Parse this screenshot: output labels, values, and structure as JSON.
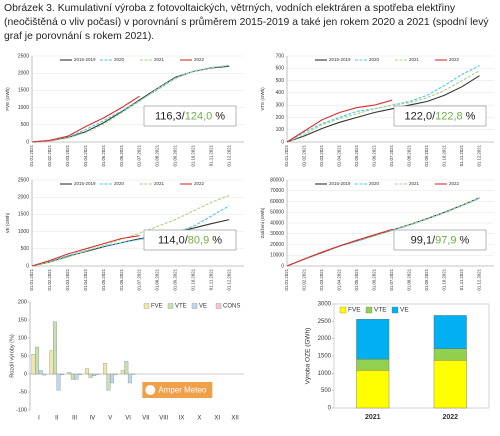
{
  "caption": "Obrázek 3. Kumulativní výroba z fotovoltaických, větrných, vodních elektráren a spotřeba elektřiny (neočištěná o vliv počasí) v porovnání s průměrem 2015-2019 a také jen rokem 2020 a 2021 (spodní levý graf je porovnání s rokem 2021).",
  "chart_data": [
    {
      "type": "line",
      "ylabel": "FVE (GWh)",
      "categories": [
        "01.01.2021",
        "01.02.2021",
        "01.03.2021",
        "01.04.2021",
        "01.05.2021",
        "01.06.2021",
        "01.07.2021",
        "01.08.2021",
        "01.09.2021",
        "01.10.2021",
        "01.11.2021",
        "01.12.2021"
      ],
      "ylim": [
        0,
        2500
      ],
      "yticks": [
        0,
        500,
        1000,
        1500,
        2000,
        2500
      ],
      "grid": true,
      "series": [
        {
          "name": "2015-2019",
          "color": "#333333",
          "dashed": false,
          "values": [
            0,
            40,
            130,
            300,
            560,
            880,
            1220,
            1560,
            1880,
            2050,
            2150,
            2200
          ]
        },
        {
          "name": "2020",
          "color": "#4fc3e8",
          "dashed": true,
          "values": [
            0,
            40,
            140,
            360,
            620,
            900,
            1200,
            1520,
            1850,
            2060,
            2170,
            2220
          ]
        },
        {
          "name": "2021",
          "color": "#a9d18e",
          "dashed": true,
          "values": [
            0,
            30,
            110,
            280,
            520,
            850,
            1180,
            1550,
            1860,
            2050,
            2160,
            2230
          ]
        },
        {
          "name": "2022",
          "color": "#d9302c",
          "dashed": false,
          "values": [
            0,
            50,
            170,
            450,
            700,
            1000,
            1330,
            null,
            null,
            null,
            null,
            null
          ]
        }
      ],
      "annotation": [
        "116,3/",
        "124,0",
        "%"
      ]
    },
    {
      "type": "line",
      "ylabel": "VTE (GWh)",
      "categories": [
        "01.01.2021",
        "01.02.2021",
        "01.03.2021",
        "01.04.2021",
        "01.05.2021",
        "01.06.2021",
        "01.07.2021",
        "01.08.2021",
        "01.09.2021",
        "01.10.2021",
        "01.11.2021",
        "01.12.2021"
      ],
      "ylim": [
        0,
        700
      ],
      "yticks": [
        0,
        100,
        200,
        300,
        400,
        500,
        600,
        700
      ],
      "grid": true,
      "series": [
        {
          "name": "2015-2019",
          "color": "#333333",
          "dashed": false,
          "values": [
            0,
            50,
            110,
            160,
            200,
            240,
            270,
            300,
            330,
            380,
            450,
            540
          ]
        },
        {
          "name": "2020",
          "color": "#4fc3e8",
          "dashed": true,
          "values": [
            0,
            80,
            150,
            200,
            250,
            270,
            300,
            330,
            380,
            460,
            550,
            620
          ]
        },
        {
          "name": "2021",
          "color": "#a9d18e",
          "dashed": true,
          "values": [
            0,
            60,
            140,
            190,
            230,
            270,
            300,
            320,
            360,
            420,
            500,
            580
          ]
        },
        {
          "name": "2022",
          "color": "#d9302c",
          "dashed": false,
          "values": [
            0,
            90,
            180,
            240,
            280,
            300,
            340,
            null,
            null,
            null,
            null,
            null
          ]
        }
      ],
      "annotation": [
        "122,0/",
        "122,8",
        "%"
      ]
    },
    {
      "type": "line",
      "ylabel": "VE (GWh)",
      "categories": [
        "01.01.2021",
        "01.02.2021",
        "01.03.2021",
        "01.04.2021",
        "01.05.2021",
        "01.06.2021",
        "01.07.2021",
        "01.08.2021",
        "01.09.2021",
        "01.10.2021",
        "01.11.2021",
        "01.12.2021"
      ],
      "ylim": [
        0,
        2500
      ],
      "yticks": [
        0,
        500,
        1000,
        1500,
        2000,
        2500
      ],
      "grid": true,
      "series": [
        {
          "name": "2015-2019",
          "color": "#333333",
          "dashed": false,
          "values": [
            0,
            120,
            280,
            420,
            560,
            680,
            790,
            880,
            990,
            1100,
            1230,
            1350
          ]
        },
        {
          "name": "2020",
          "color": "#4fc3e8",
          "dashed": true,
          "values": [
            0,
            140,
            300,
            450,
            570,
            680,
            770,
            860,
            960,
            1150,
            1450,
            1750
          ]
        },
        {
          "name": "2021",
          "color": "#a9d18e",
          "dashed": true,
          "values": [
            0,
            110,
            260,
            430,
            600,
            780,
            950,
            1150,
            1350,
            1600,
            1850,
            2050
          ]
        },
        {
          "name": "2022",
          "color": "#d9302c",
          "dashed": false,
          "values": [
            0,
            160,
            350,
            500,
            650,
            800,
            880,
            null,
            null,
            null,
            null,
            null
          ]
        }
      ],
      "annotation": [
        "114,0/",
        "80,9",
        "%"
      ]
    },
    {
      "type": "line",
      "ylabel": "Zatížení (GWh)",
      "categories": [
        "01.01.2021",
        "01.02.2021",
        "01.03.2021",
        "01.04.2021",
        "01.05.2021",
        "01.06.2021",
        "01.07.2021",
        "01.08.2021",
        "01.09.2021",
        "01.10.2021",
        "01.11.2021",
        "01.12.2021"
      ],
      "ylim": [
        0,
        80000
      ],
      "yticks": [
        0,
        10000,
        20000,
        30000,
        40000,
        50000,
        60000,
        70000,
        80000
      ],
      "grid": true,
      "series": [
        {
          "name": "2015-2019",
          "color": "#333333",
          "dashed": false,
          "values": [
            0,
            6500,
            12500,
            18500,
            23500,
            28500,
            33500,
            38500,
            44000,
            50000,
            56500,
            63500
          ]
        },
        {
          "name": "2020",
          "color": "#4fc3e8",
          "dashed": true,
          "values": [
            0,
            6600,
            12700,
            18300,
            23000,
            28000,
            33000,
            38000,
            43500,
            49500,
            56000,
            63000
          ]
        },
        {
          "name": "2021",
          "color": "#a9d18e",
          "dashed": true,
          "values": [
            0,
            6700,
            12800,
            18600,
            23600,
            28400,
            33400,
            38400,
            43800,
            49800,
            56400,
            63600
          ]
        },
        {
          "name": "2022",
          "color": "#d9302c",
          "dashed": false,
          "values": [
            0,
            6500,
            12800,
            18700,
            24000,
            29000,
            34000,
            null,
            null,
            null,
            null,
            null
          ]
        }
      ],
      "annotation": [
        "99,1/",
        "97,9",
        "%"
      ]
    },
    {
      "type": "bar",
      "ylabel": "Rozdíl výroby (%)",
      "categories": [
        "I",
        "II",
        "III",
        "IV",
        "V",
        "VI",
        "VII",
        "VIII",
        "IX",
        "X",
        "XI",
        "XII"
      ],
      "ylim": [
        -100,
        200
      ],
      "yticks": [
        -100,
        -50,
        0,
        50,
        100,
        150,
        200
      ],
      "legend": "top-right",
      "logo": "Amper Meteo",
      "series": [
        {
          "name": "FVE",
          "color": "#f2e6a7",
          "values": [
            55,
            65,
            5,
            15,
            30,
            10,
            null,
            null,
            null,
            null,
            null,
            null
          ]
        },
        {
          "name": "VTE",
          "color": "#c5e0b4",
          "values": [
            75,
            145,
            -15,
            -10,
            -45,
            35,
            null,
            null,
            null,
            null,
            null,
            null
          ]
        },
        {
          "name": "VE",
          "color": "#bdd7ee",
          "values": [
            10,
            -45,
            -15,
            -5,
            -25,
            -25,
            null,
            null,
            null,
            null,
            null,
            null
          ]
        },
        {
          "name": "CONS",
          "color": "#f4c7d3",
          "values": [
            -3,
            -2,
            -2,
            -1,
            -2,
            -1,
            null,
            null,
            null,
            null,
            null,
            null
          ]
        }
      ]
    },
    {
      "type": "stacked_bar",
      "ylabel": "Výroba OZE (GWh)",
      "categories": [
        "2021",
        "2022"
      ],
      "ylim": [
        0,
        3000
      ],
      "yticks": [
        0,
        500,
        1000,
        1500,
        2000,
        2500,
        3000
      ],
      "legend": "top-left",
      "series": [
        {
          "name": "FVE",
          "color": "#ffff00",
          "values": [
            1090,
            1380
          ]
        },
        {
          "name": "VTE",
          "color": "#92d050",
          "values": [
            320,
            330
          ]
        },
        {
          "name": "VE",
          "color": "#00b0f0",
          "values": [
            1150,
            960
          ]
        }
      ]
    }
  ]
}
